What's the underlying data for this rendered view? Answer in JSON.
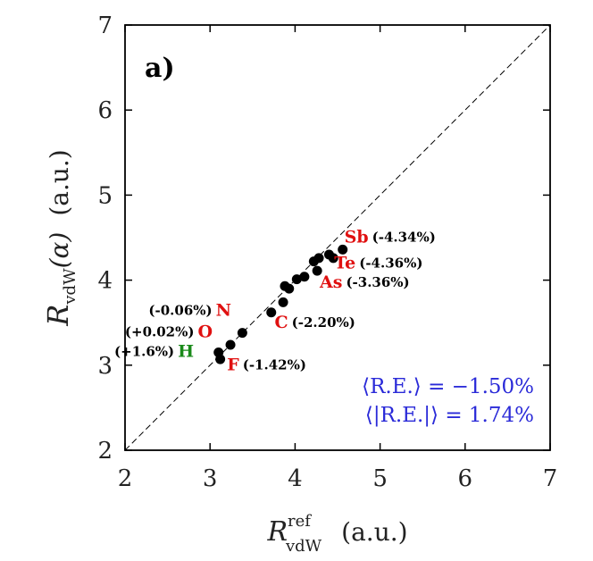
{
  "chart_data": {
    "type": "scatter",
    "panel_label": "a)",
    "xlabel": {
      "main": "R",
      "sup": "ref",
      "sub": "vdW",
      "unit": "(a.u.)"
    },
    "ylabel": {
      "main": "R",
      "sub": "vdW",
      "arg": "(α)",
      "unit": "(a.u.)"
    },
    "xlim": [
      2,
      7
    ],
    "ylim": [
      2,
      7
    ],
    "xticks": [
      "2",
      "3",
      "4",
      "5",
      "6",
      "7"
    ],
    "yticks": [
      "2",
      "3",
      "4",
      "5",
      "6",
      "7"
    ],
    "diagonal": true,
    "grid": false,
    "points": [
      {
        "x": 3.1,
        "y": 3.15
      },
      {
        "x": 3.12,
        "y": 3.07
      },
      {
        "x": 3.24,
        "y": 3.24
      },
      {
        "x": 3.38,
        "y": 3.38
      },
      {
        "x": 3.72,
        "y": 3.62
      },
      {
        "x": 3.86,
        "y": 3.74
      },
      {
        "x": 3.88,
        "y": 3.93
      },
      {
        "x": 3.93,
        "y": 3.9
      },
      {
        "x": 4.02,
        "y": 4.01
      },
      {
        "x": 4.11,
        "y": 4.04
      },
      {
        "x": 4.22,
        "y": 4.22
      },
      {
        "x": 4.26,
        "y": 4.11
      },
      {
        "x": 4.28,
        "y": 4.26
      },
      {
        "x": 4.4,
        "y": 4.3
      },
      {
        "x": 4.45,
        "y": 4.26
      },
      {
        "x": 4.56,
        "y": 4.36
      }
    ],
    "annotations": [
      {
        "element": "Sb",
        "error": "(-4.34%)",
        "color": "#e01010",
        "x": 4.58,
        "y": 4.44,
        "side": "right"
      },
      {
        "element": "Te",
        "error": "(-4.36%)",
        "color": "#e01010",
        "x": 4.46,
        "y": 4.14,
        "side": "right"
      },
      {
        "element": "As",
        "error": "(-3.36%)",
        "color": "#e01010",
        "x": 4.29,
        "y": 3.91,
        "side": "right"
      },
      {
        "element": "C",
        "error": "(-2.20%)",
        "color": "#e01010",
        "x": 3.76,
        "y": 3.44,
        "side": "right"
      },
      {
        "element": "F",
        "error": "(-1.42%)",
        "color": "#e01010",
        "x": 3.2,
        "y": 2.94,
        "side": "right"
      },
      {
        "element": "N",
        "error": "(-0.06%)",
        "color": "#e01010",
        "x": 3.25,
        "y": 3.58,
        "side": "left"
      },
      {
        "element": "O",
        "error": "(+0.02%)",
        "color": "#e01010",
        "x": 3.03,
        "y": 3.33,
        "side": "left"
      },
      {
        "element": "H",
        "error": "(+1.6%)",
        "color": "#1a8a1a",
        "x": 2.81,
        "y": 3.1,
        "side": "left"
      }
    ],
    "stats": {
      "mean_re": "⟨R.E.⟩ = −1.50%",
      "mean_abs_re": "⟨|R.E.|⟩ = 1.74%"
    }
  }
}
